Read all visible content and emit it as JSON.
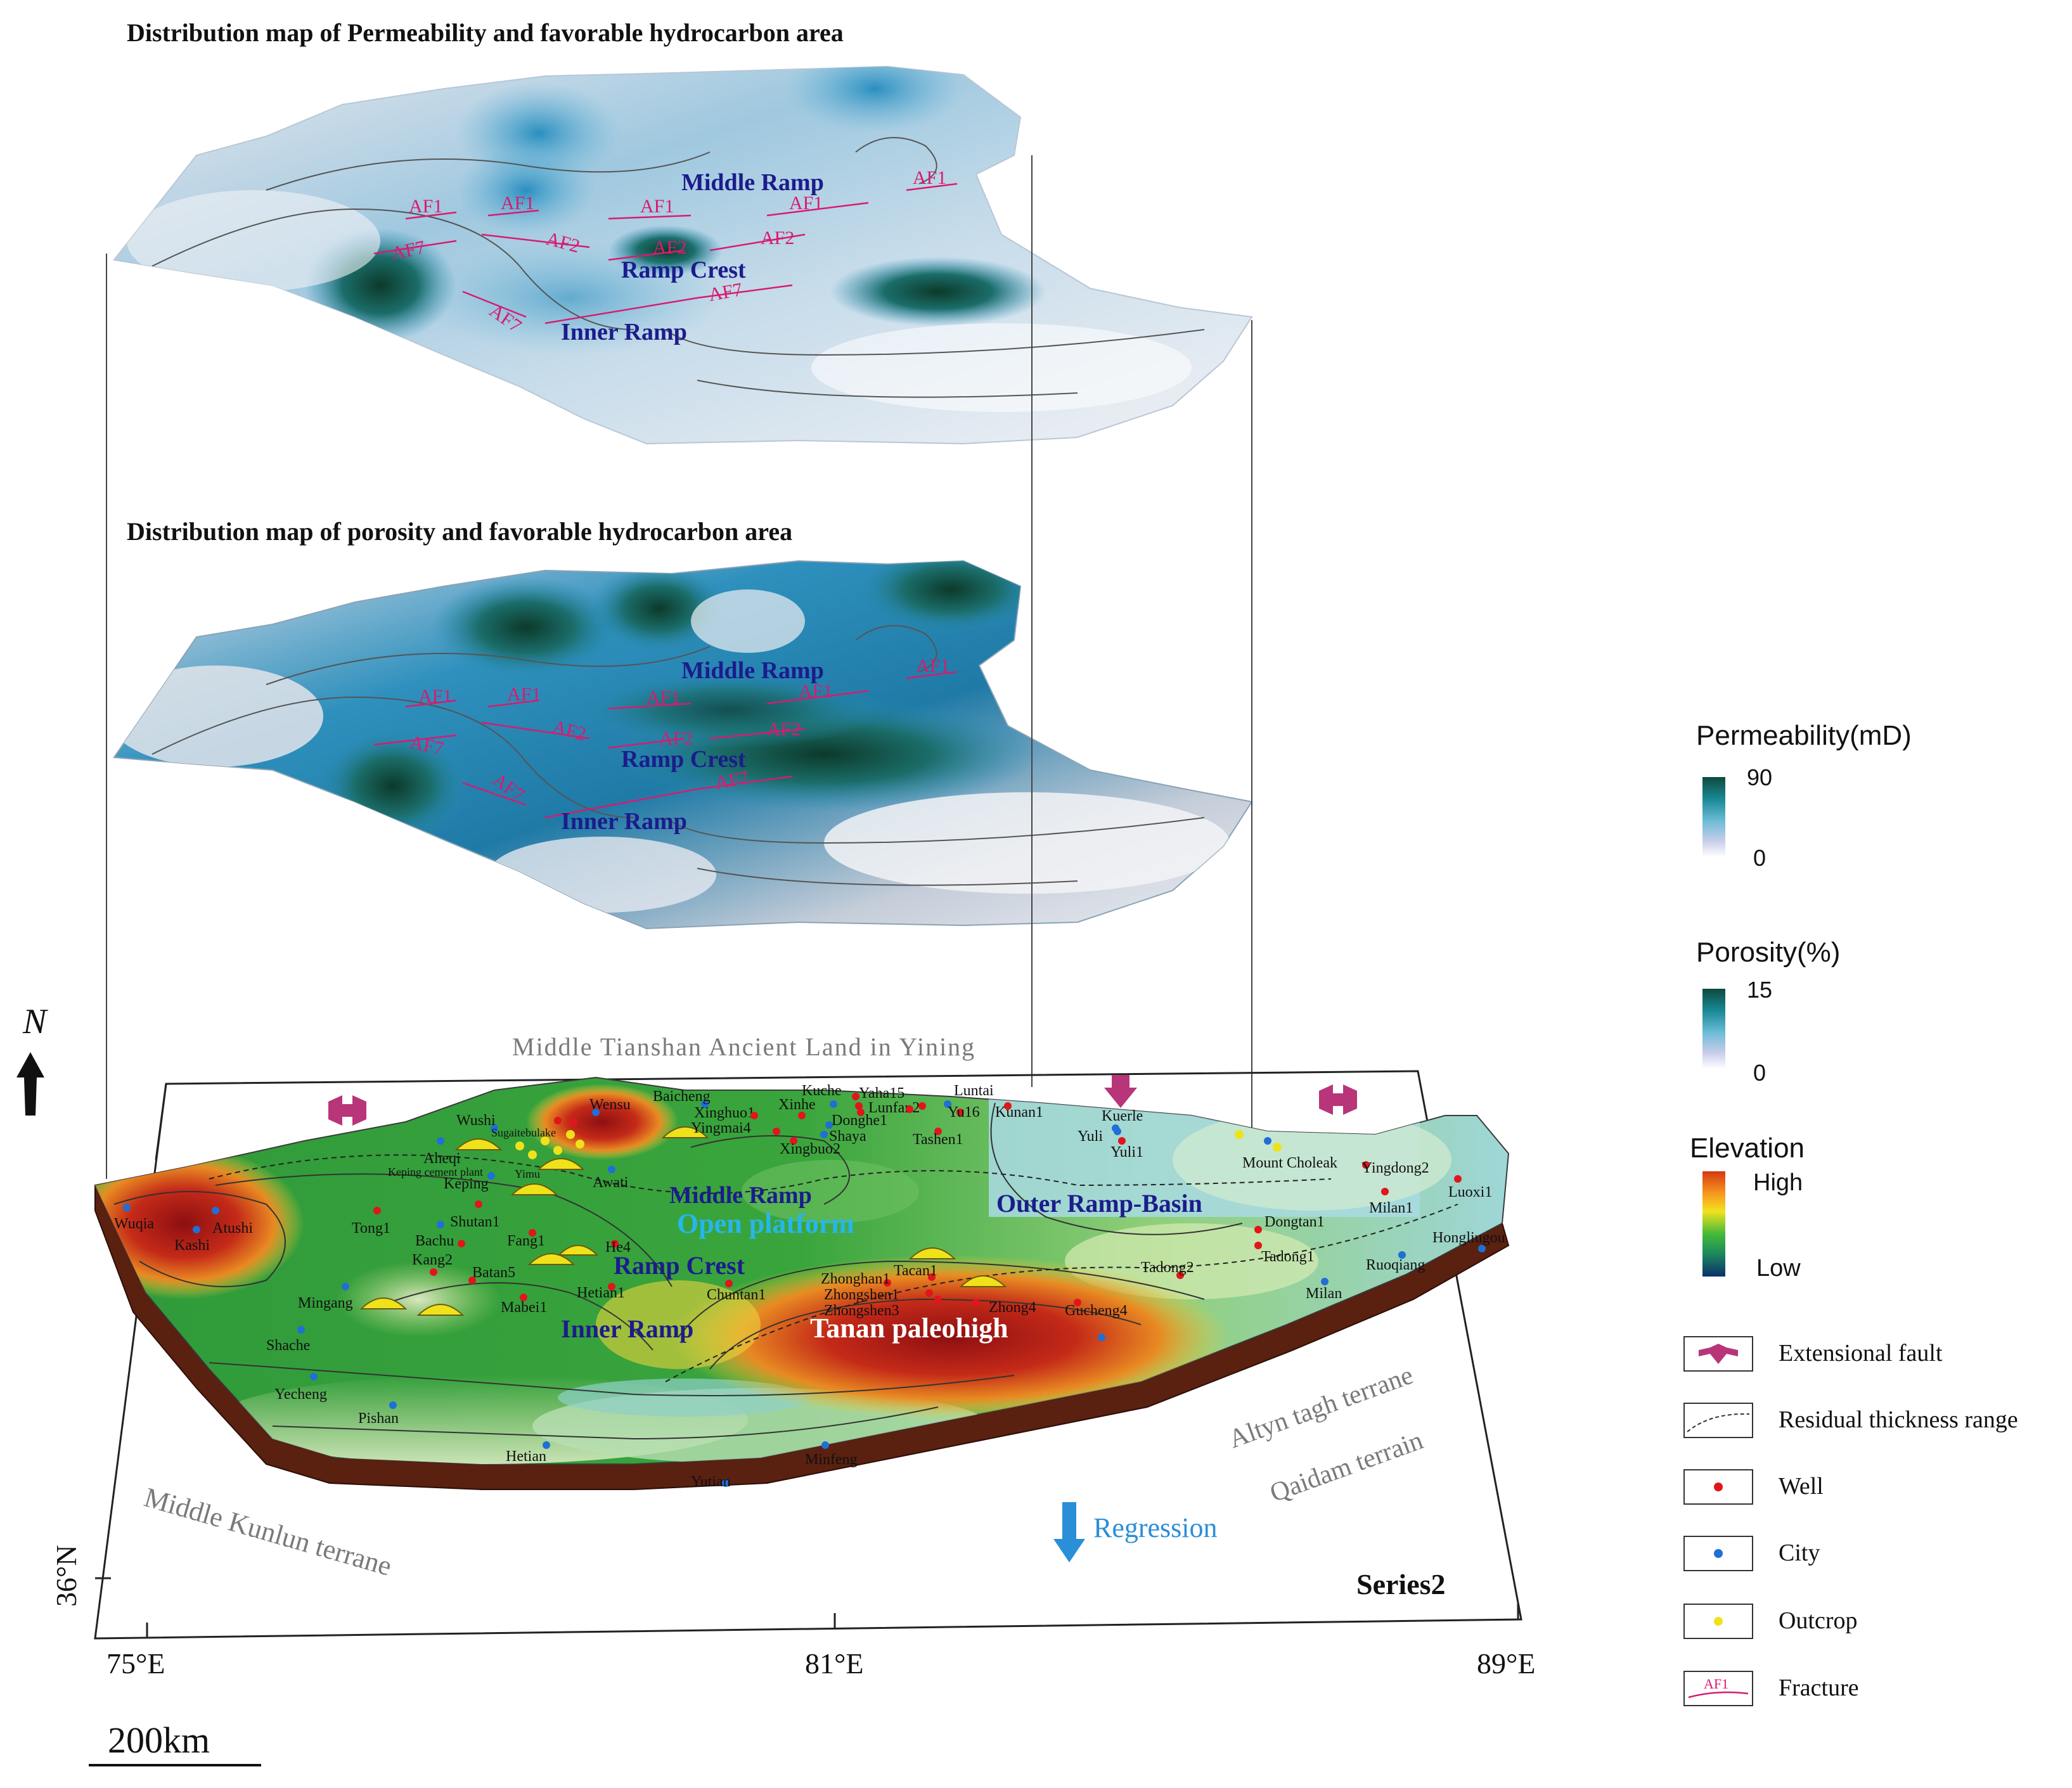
{
  "titles": {
    "permeability_map": "Distribution map of Permeability and favorable hydrocarbon area",
    "porosity_map": "Distribution map of porosity and favorable hydrocarbon area"
  },
  "facies": {
    "middle_ramp": "Middle Ramp",
    "ramp_crest": "Ramp Crest",
    "inner_ramp": "Inner Ramp",
    "open_platform": "Open  platform",
    "outer_ramp_basin": "Outer Ramp-Basin",
    "tanan_paleohigh": "Tanan paleohigh"
  },
  "fractures": {
    "af1": "AF1",
    "af2": "AF2",
    "af7": "AF7"
  },
  "base_map": {
    "north": "N",
    "tianshan": "Middle Tianshan Ancient Land in Yining",
    "kunlun": "Middle Kunlun terrane",
    "altyn": "Altyn tagh terrane",
    "qaidam": "Qaidam terrain",
    "regression": "Regression",
    "series": "Series2",
    "lat": "36°N",
    "lon_west": "75°E",
    "lon_mid": "81°E",
    "lon_east": "89°E",
    "scale": "200km",
    "places": {
      "wuqia": "Wuqia",
      "kashi": "Kashi",
      "atushi": "Atushi",
      "tong1": "Tong1",
      "bachu": "Bachu",
      "kang2": "Kang2",
      "batan5": "Batan5",
      "mingang": "Mingang",
      "shache": "Shache",
      "yecheng": "Yecheng",
      "pishan": "Pishan",
      "hetian": "Hetian",
      "yutian": "Yutian",
      "minfeng": "Minfeng",
      "aheqi": "Aheqi",
      "keping": "Keping",
      "shutan1": "Shutan1",
      "fang1": "Fang1",
      "he4": "He4",
      "hetian1": "Hetian1",
      "mabei1": "Mabei1",
      "awati": "Awati",
      "wushi": "Wushi",
      "wensu": "Wensu",
      "baicheng": "Baicheng",
      "kuche": "Kuche",
      "yaha15": "Yaha15",
      "luntai": "Luntai",
      "xinhe": "Xinhe",
      "xinghuo1": "Xinghuo1",
      "yingmai4": "Yingmai4",
      "donghe1": "Donghe1",
      "shaya": "Shaya",
      "lunfan2": "Lunfan2",
      "yu16": "Yu16",
      "kunan1": "Kunan1",
      "xingbuo2": "Xingbuo2",
      "tashen1": "Tashen1",
      "kuerle": "Kuerle",
      "yuli": "Yuli",
      "yuli1": "Yuli1",
      "mount_choleak": "Mount Choleak",
      "yingdong": "Yingdong2",
      "milan1": "Milan1",
      "luoxi1": "Luoxi1",
      "dongtan1": "Dongtan1",
      "tadong1": "Tadong1",
      "tadong2": "Tadong2",
      "ruoqiang": "Ruoqiang",
      "hongliugou": "Hongliugou",
      "milan": "Milan",
      "chuntan1": "Chuntan1",
      "zhonghan1": "Zhonghan1",
      "tacan1": "Tacan1",
      "zhongshen1": "Zhongshen1",
      "zhongshen3": "Zhongshen3",
      "zhong4": "Zhong4",
      "gucheng4": "Gucheng4",
      "keping_cement": "Keping cement plant",
      "sugaitebulake": "Sugaitebulake",
      "yimu": "Yimu"
    }
  },
  "legend": {
    "permeability": {
      "title": "Permeability(mD)",
      "max": "90",
      "min": "0"
    },
    "porosity": {
      "title": "Porosity(%)",
      "max": "15",
      "min": "0"
    },
    "elevation": {
      "title": "Elevation",
      "high": "High",
      "low": "Low"
    },
    "symbols": {
      "extensional_fault": "Extensional fault",
      "residual_thickness": "Residual thickness range",
      "well": "Well",
      "city": "City",
      "outcrop": "Outcrop",
      "fracture": "Fracture",
      "fracture_sample": "AF1"
    }
  },
  "colors": {
    "facies_text": "#1c1c8c",
    "fracture": "#d81b70",
    "fault_symbol": "#b8357a",
    "well": "#e0161b",
    "city": "#1f6fd6",
    "outcrop": "#f0e21a",
    "regression_arrow": "#2a8fd8",
    "open_platform_text": "#27b6ec"
  }
}
